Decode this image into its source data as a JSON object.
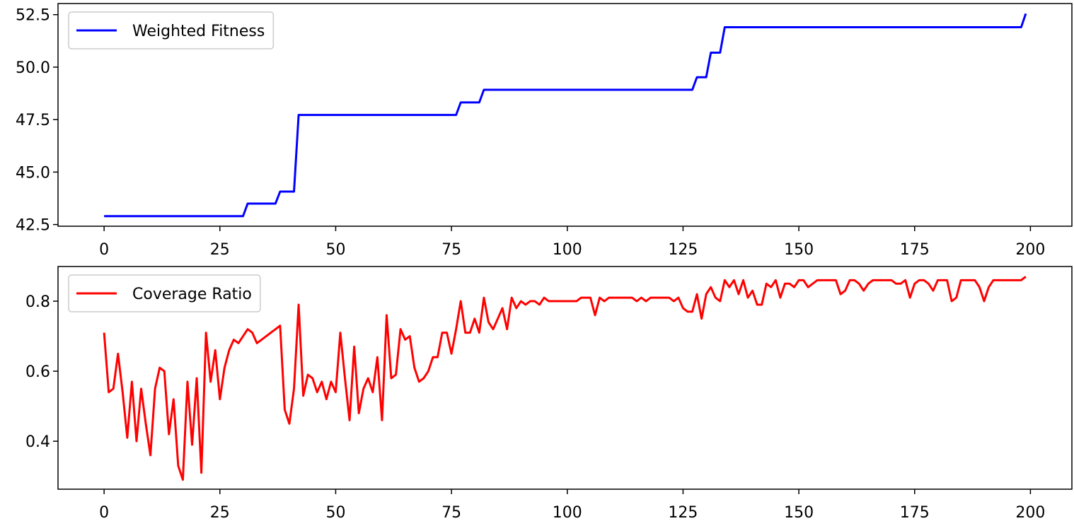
{
  "chart_data": [
    {
      "type": "line",
      "legend": "upper left",
      "grid": false,
      "xlim": [
        -9.95,
        208.95
      ],
      "xticks": [
        0,
        25,
        50,
        75,
        100,
        125,
        150,
        175,
        200
      ],
      "ylim": [
        42.42,
        53.03
      ],
      "yticks": [
        42.5,
        {
          "value": 45,
          "label": "45.0"
        },
        47.5,
        {
          "value": 50,
          "label": "50.0"
        },
        52.5
      ],
      "x": [
        0,
        1,
        2,
        3,
        4,
        5,
        6,
        7,
        8,
        9,
        10,
        11,
        12,
        13,
        14,
        15,
        16,
        17,
        18,
        19,
        20,
        21,
        22,
        23,
        24,
        25,
        26,
        27,
        28,
        29,
        30,
        31,
        32,
        33,
        34,
        35,
        36,
        37,
        38,
        39,
        40,
        41,
        42,
        43,
        44,
        45,
        46,
        47,
        48,
        49,
        50,
        51,
        52,
        53,
        54,
        55,
        56,
        57,
        58,
        59,
        60,
        61,
        62,
        63,
        64,
        65,
        66,
        67,
        68,
        69,
        70,
        71,
        72,
        73,
        74,
        75,
        76,
        77,
        78,
        79,
        80,
        81,
        82,
        83,
        84,
        85,
        86,
        87,
        88,
        89,
        90,
        91,
        92,
        93,
        94,
        95,
        96,
        97,
        98,
        99,
        100,
        101,
        102,
        103,
        104,
        105,
        106,
        107,
        108,
        109,
        110,
        111,
        112,
        113,
        114,
        115,
        116,
        117,
        118,
        119,
        120,
        121,
        122,
        123,
        124,
        125,
        126,
        127,
        128,
        129,
        130,
        131,
        132,
        133,
        134,
        135,
        136,
        137,
        138,
        139,
        140,
        141,
        142,
        143,
        144,
        145,
        146,
        147,
        148,
        149,
        150,
        151,
        152,
        153,
        154,
        155,
        156,
        157,
        158,
        159,
        160,
        161,
        162,
        163,
        164,
        165,
        166,
        167,
        168,
        169,
        170,
        171,
        172,
        173,
        174,
        175,
        176,
        177,
        178,
        179,
        180,
        181,
        182,
        183,
        184,
        185,
        186,
        187,
        188,
        189,
        190,
        191,
        192,
        193,
        194,
        195,
        196,
        197,
        198,
        199
      ],
      "series": [
        {
          "name": "Weighted Fitness",
          "color": "#0000ff",
          "values": [
            42.9,
            42.9,
            42.9,
            42.9,
            42.9,
            42.9,
            42.9,
            42.9,
            42.9,
            42.9,
            42.9,
            42.9,
            42.9,
            42.9,
            42.9,
            42.9,
            42.9,
            42.9,
            42.9,
            42.9,
            42.9,
            42.9,
            42.9,
            42.9,
            42.9,
            42.9,
            42.9,
            42.9,
            42.9,
            42.9,
            42.9,
            43.5,
            43.5,
            43.5,
            43.5,
            43.5,
            43.5,
            43.5,
            44.07,
            44.07,
            44.07,
            44.07,
            47.72,
            47.72,
            47.72,
            47.72,
            47.72,
            47.72,
            47.72,
            47.72,
            47.72,
            47.72,
            47.72,
            47.72,
            47.72,
            47.72,
            47.72,
            47.72,
            47.72,
            47.72,
            47.72,
            47.72,
            47.72,
            47.72,
            47.72,
            47.72,
            47.72,
            47.72,
            47.72,
            47.72,
            47.72,
            47.72,
            47.72,
            47.72,
            47.72,
            47.72,
            47.72,
            48.32,
            48.32,
            48.32,
            48.32,
            48.32,
            48.92,
            48.92,
            48.92,
            48.92,
            48.92,
            48.92,
            48.92,
            48.92,
            48.92,
            48.92,
            48.92,
            48.92,
            48.92,
            48.92,
            48.92,
            48.92,
            48.92,
            48.92,
            48.92,
            48.92,
            48.92,
            48.92,
            48.92,
            48.92,
            48.92,
            48.92,
            48.92,
            48.92,
            48.92,
            48.92,
            48.92,
            48.92,
            48.92,
            48.92,
            48.92,
            48.92,
            48.92,
            48.92,
            48.92,
            48.92,
            48.92,
            48.92,
            48.92,
            48.92,
            48.92,
            48.92,
            49.52,
            49.52,
            49.52,
            50.69,
            50.69,
            50.69,
            51.9,
            51.9,
            51.9,
            51.9,
            51.9,
            51.9,
            51.9,
            51.9,
            51.9,
            51.9,
            51.9,
            51.9,
            51.9,
            51.9,
            51.9,
            51.9,
            51.9,
            51.9,
            51.9,
            51.9,
            51.9,
            51.9,
            51.9,
            51.9,
            51.9,
            51.9,
            51.9,
            51.9,
            51.9,
            51.9,
            51.9,
            51.9,
            51.9,
            51.9,
            51.9,
            51.9,
            51.9,
            51.9,
            51.9,
            51.9,
            51.9,
            51.9,
            51.9,
            51.9,
            51.9,
            51.9,
            51.9,
            51.9,
            51.9,
            51.9,
            51.9,
            51.9,
            51.9,
            51.9,
            51.9,
            51.9,
            51.9,
            51.9,
            51.9,
            51.9,
            51.9,
            51.9,
            51.9,
            51.9,
            51.9,
            52.55
          ]
        }
      ]
    },
    {
      "type": "line",
      "legend": "upper left",
      "grid": false,
      "xlim": [
        -9.95,
        208.95
      ],
      "xticks": [
        0,
        25,
        50,
        75,
        100,
        125,
        150,
        175,
        200
      ],
      "ylim": [
        0.263,
        0.899
      ],
      "yticks": [
        0.4,
        0.6,
        0.8
      ],
      "x": [
        0,
        1,
        2,
        3,
        4,
        5,
        6,
        7,
        8,
        9,
        10,
        11,
        12,
        13,
        14,
        15,
        16,
        17,
        18,
        19,
        20,
        21,
        22,
        23,
        24,
        25,
        26,
        27,
        28,
        29,
        30,
        31,
        32,
        33,
        34,
        35,
        36,
        37,
        38,
        39,
        40,
        41,
        42,
        43,
        44,
        45,
        46,
        47,
        48,
        49,
        50,
        51,
        52,
        53,
        54,
        55,
        56,
        57,
        58,
        59,
        60,
        61,
        62,
        63,
        64,
        65,
        66,
        67,
        68,
        69,
        70,
        71,
        72,
        73,
        74,
        75,
        76,
        77,
        78,
        79,
        80,
        81,
        82,
        83,
        84,
        85,
        86,
        87,
        88,
        89,
        90,
        91,
        92,
        93,
        94,
        95,
        96,
        97,
        98,
        99,
        100,
        101,
        102,
        103,
        104,
        105,
        106,
        107,
        108,
        109,
        110,
        111,
        112,
        113,
        114,
        115,
        116,
        117,
        118,
        119,
        120,
        121,
        122,
        123,
        124,
        125,
        126,
        127,
        128,
        129,
        130,
        131,
        132,
        133,
        134,
        135,
        136,
        137,
        138,
        139,
        140,
        141,
        142,
        143,
        144,
        145,
        146,
        147,
        148,
        149,
        150,
        151,
        152,
        153,
        154,
        155,
        156,
        157,
        158,
        159,
        160,
        161,
        162,
        163,
        164,
        165,
        166,
        167,
        168,
        169,
        170,
        171,
        172,
        173,
        174,
        175,
        176,
        177,
        178,
        179,
        180,
        181,
        182,
        183,
        184,
        185,
        186,
        187,
        188,
        189,
        190,
        191,
        192,
        193,
        194,
        195,
        196,
        197,
        198,
        199
      ],
      "series": [
        {
          "name": "Coverage Ratio",
          "color": "#ff0000",
          "values": [
            0.71,
            0.54,
            0.55,
            0.65,
            0.54,
            0.41,
            0.57,
            0.4,
            0.55,
            0.45,
            0.36,
            0.55,
            0.61,
            0.6,
            0.42,
            0.52,
            0.33,
            0.29,
            0.57,
            0.39,
            0.58,
            0.31,
            0.71,
            0.57,
            0.66,
            0.52,
            0.61,
            0.66,
            0.69,
            0.68,
            0.7,
            0.72,
            0.71,
            0.68,
            0.69,
            0.7,
            0.71,
            0.72,
            0.73,
            0.49,
            0.45,
            0.55,
            0.79,
            0.53,
            0.59,
            0.58,
            0.54,
            0.57,
            0.52,
            0.57,
            0.54,
            0.71,
            0.58,
            0.46,
            0.67,
            0.48,
            0.55,
            0.58,
            0.54,
            0.64,
            0.46,
            0.76,
            0.58,
            0.59,
            0.72,
            0.69,
            0.7,
            0.61,
            0.57,
            0.58,
            0.6,
            0.64,
            0.64,
            0.71,
            0.71,
            0.65,
            0.72,
            0.8,
            0.71,
            0.71,
            0.75,
            0.71,
            0.81,
            0.74,
            0.72,
            0.75,
            0.78,
            0.72,
            0.81,
            0.78,
            0.8,
            0.79,
            0.8,
            0.8,
            0.79,
            0.81,
            0.8,
            0.8,
            0.8,
            0.8,
            0.8,
            0.8,
            0.8,
            0.81,
            0.81,
            0.81,
            0.76,
            0.81,
            0.8,
            0.81,
            0.81,
            0.81,
            0.81,
            0.81,
            0.81,
            0.8,
            0.81,
            0.8,
            0.81,
            0.81,
            0.81,
            0.81,
            0.81,
            0.8,
            0.81,
            0.78,
            0.77,
            0.77,
            0.82,
            0.75,
            0.82,
            0.84,
            0.81,
            0.8,
            0.86,
            0.84,
            0.86,
            0.82,
            0.86,
            0.81,
            0.83,
            0.79,
            0.79,
            0.85,
            0.84,
            0.86,
            0.81,
            0.85,
            0.85,
            0.84,
            0.86,
            0.86,
            0.84,
            0.85,
            0.86,
            0.86,
            0.86,
            0.86,
            0.86,
            0.82,
            0.83,
            0.86,
            0.86,
            0.85,
            0.83,
            0.85,
            0.86,
            0.86,
            0.86,
            0.86,
            0.86,
            0.85,
            0.85,
            0.86,
            0.81,
            0.85,
            0.86,
            0.86,
            0.85,
            0.83,
            0.86,
            0.86,
            0.86,
            0.8,
            0.81,
            0.86,
            0.86,
            0.86,
            0.86,
            0.84,
            0.8,
            0.84,
            0.86,
            0.86,
            0.86,
            0.86,
            0.86,
            0.86,
            0.86,
            0.87
          ]
        }
      ]
    }
  ]
}
